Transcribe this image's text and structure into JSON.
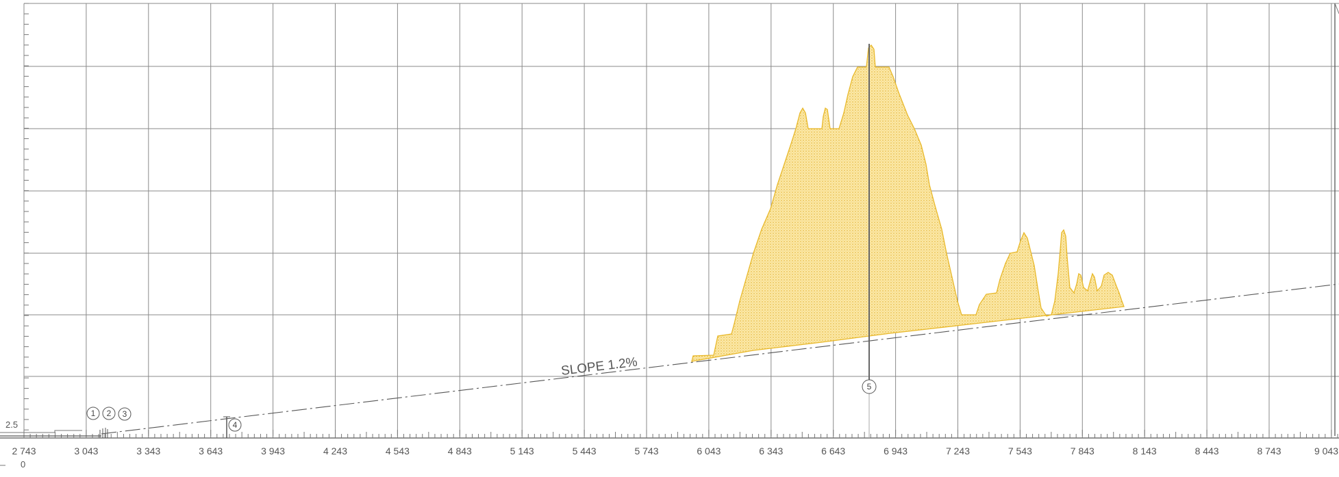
{
  "x_axis": {
    "ticks": [
      "2 743",
      "3 043",
      "3 343",
      "3 643",
      "3 943",
      "4 243",
      "4 543",
      "4 843",
      "5 143",
      "5 443",
      "5 743",
      "6 043",
      "6 343",
      "6 643",
      "6 943",
      "7 243",
      "7 543",
      "7 843",
      "8 143",
      "8 443",
      "8 743",
      "9 043"
    ],
    "extra_label": "0"
  },
  "y_axis": {
    "label": "2.5"
  },
  "slope_label": "SLOPE 1.2%",
  "callouts": [
    "1",
    "2",
    "3",
    "4",
    "5"
  ],
  "colors": {
    "grid": "#8a8a8a",
    "fill": "#f7dc8c",
    "outline": "#e8b82a",
    "line": "#555555"
  }
}
